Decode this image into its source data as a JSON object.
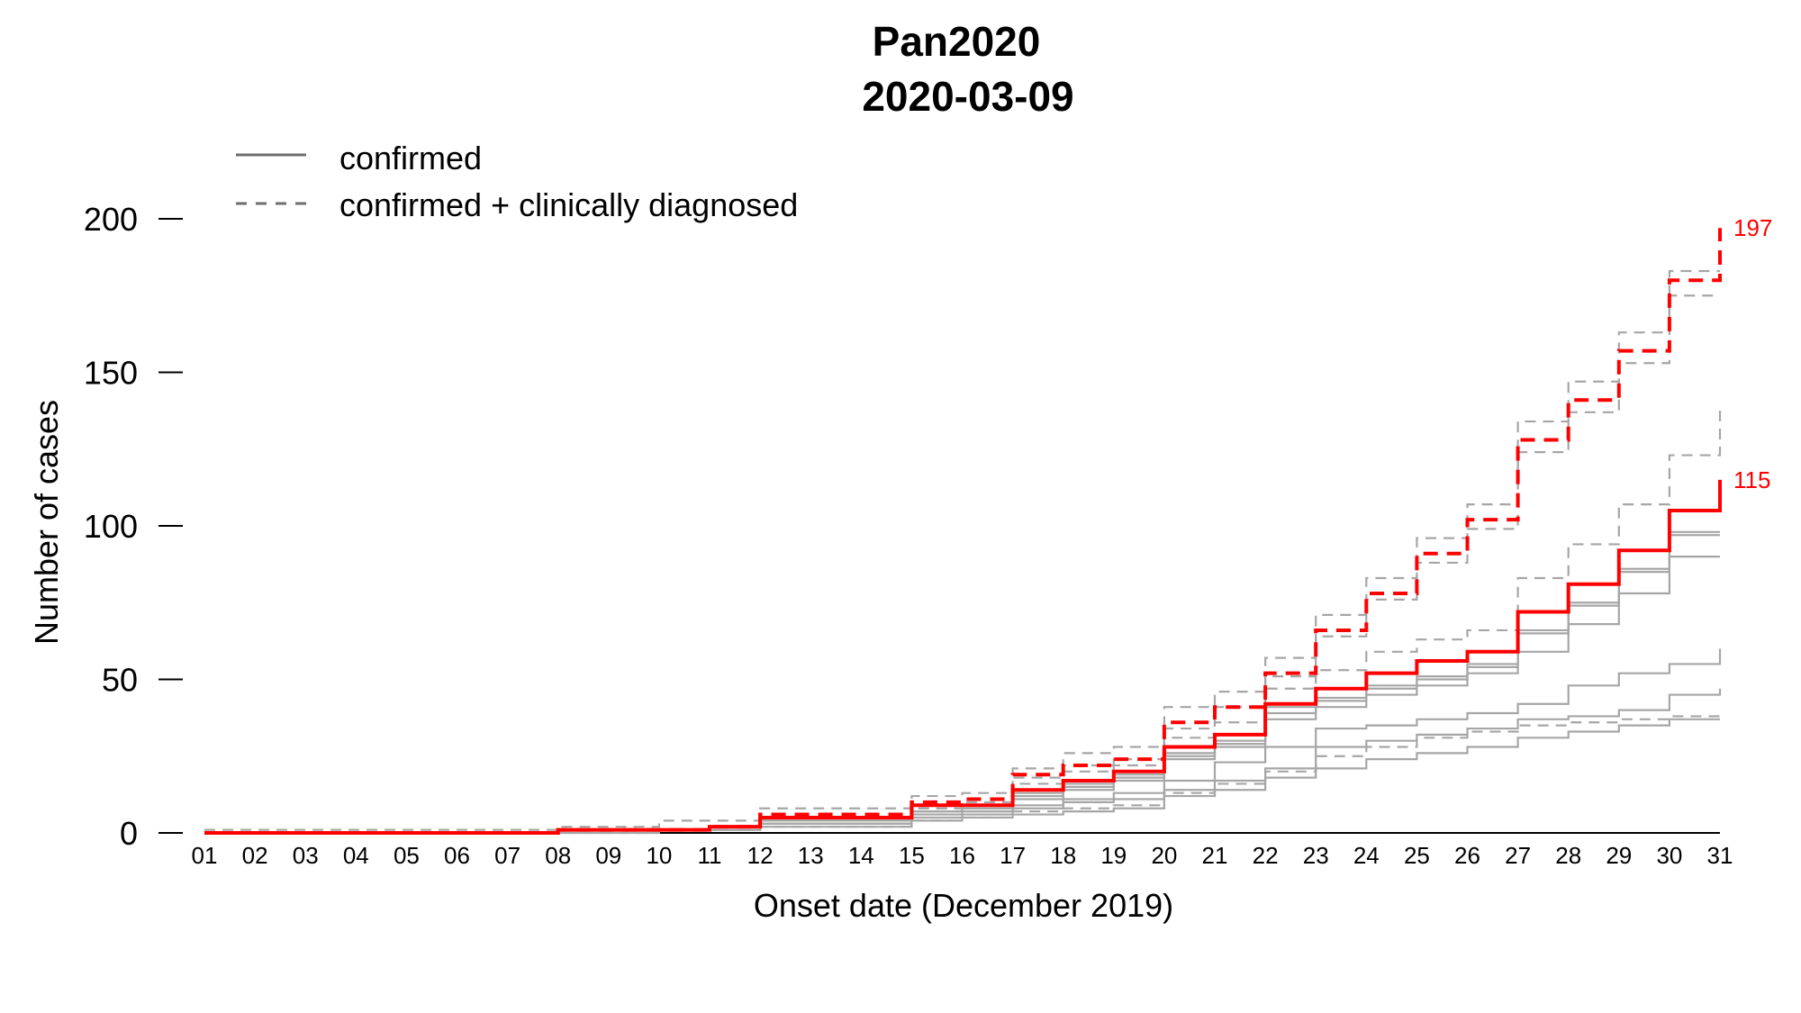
{
  "chart_data": {
    "type": "line",
    "step": true,
    "title": "Pan2020",
    "subtitle": "2020-03-09",
    "xlabel": "Onset date (December 2019)",
    "ylabel": "Number of cases",
    "categories": [
      "01",
      "02",
      "03",
      "04",
      "05",
      "06",
      "07",
      "08",
      "09",
      "10",
      "11",
      "12",
      "13",
      "14",
      "15",
      "16",
      "17",
      "18",
      "19",
      "20",
      "21",
      "22",
      "23",
      "24",
      "25",
      "26",
      "27",
      "28",
      "29",
      "30",
      "31"
    ],
    "xlim": [
      1,
      31
    ],
    "ylim": [
      0,
      200
    ],
    "yticks": [
      0,
      50,
      100,
      150,
      200
    ],
    "grid": false,
    "legend": {
      "position": "top-left",
      "entries": [
        {
          "label": "confirmed",
          "dash": "solid"
        },
        {
          "label": "confirmed + clinically diagnosed",
          "dash": "dashed"
        }
      ]
    },
    "end_labels": [
      {
        "text": "197",
        "value": 197,
        "color": "#ff0000"
      },
      {
        "text": "115",
        "value": 115,
        "color": "#ff0000"
      }
    ],
    "colors": {
      "highlight": "#ff0000",
      "background": "#a6a6a6",
      "axis": "#000000",
      "legend": "#6e6e6e"
    },
    "series": [
      {
        "role": "highlight",
        "dash": "dashed",
        "values": [
          0,
          0,
          0,
          0,
          0,
          0,
          0,
          1,
          1,
          1,
          2,
          6,
          6,
          6,
          10,
          11,
          19,
          22,
          24,
          36,
          41,
          52,
          66,
          78,
          91,
          102,
          128,
          141,
          157,
          180,
          197
        ]
      },
      {
        "role": "highlight",
        "dash": "solid",
        "values": [
          0,
          0,
          0,
          0,
          0,
          0,
          0,
          1,
          1,
          1,
          2,
          5,
          5,
          5,
          9,
          9,
          14,
          17,
          20,
          28,
          32,
          42,
          47,
          52,
          56,
          59,
          72,
          81,
          92,
          105,
          115
        ]
      },
      {
        "role": "background",
        "dash": "dashed",
        "values": [
          1,
          1,
          1,
          1,
          1,
          1,
          1,
          2,
          2,
          4,
          4,
          8,
          8,
          8,
          12,
          13,
          21,
          26,
          28,
          41,
          46,
          57,
          71,
          83,
          96,
          107,
          134,
          147,
          163,
          183,
          183
        ]
      },
      {
        "role": "background",
        "dash": "dashed",
        "values": [
          0,
          0,
          0,
          0,
          0,
          0,
          0,
          1,
          1,
          1,
          2,
          5,
          5,
          5,
          8,
          9,
          16,
          20,
          22,
          31,
          36,
          47,
          64,
          76,
          88,
          99,
          124,
          137,
          153,
          175,
          175
        ]
      },
      {
        "role": "background",
        "dash": "dashed",
        "values": [
          0,
          0,
          0,
          0,
          0,
          0,
          0,
          1,
          1,
          1,
          2,
          5,
          5,
          5,
          8,
          10,
          18,
          22,
          24,
          34,
          41,
          51,
          53,
          59,
          63,
          66,
          83,
          94,
          107,
          123,
          139
        ]
      },
      {
        "role": "background",
        "dash": "solid",
        "values": [
          0,
          0,
          0,
          0,
          0,
          0,
          0,
          1,
          1,
          1,
          2,
          4,
          4,
          4,
          7,
          8,
          13,
          16,
          19,
          26,
          30,
          41,
          44,
          48,
          51,
          55,
          66,
          75,
          86,
          98,
          98
        ]
      },
      {
        "role": "background",
        "dash": "solid",
        "values": [
          0,
          0,
          0,
          0,
          0,
          0,
          0,
          1,
          1,
          1,
          2,
          4,
          4,
          4,
          7,
          8,
          12,
          15,
          18,
          25,
          29,
          39,
          43,
          47,
          50,
          54,
          65,
          74,
          85,
          97,
          97
        ]
      },
      {
        "role": "background",
        "dash": "solid",
        "values": [
          0,
          0,
          0,
          0,
          0,
          0,
          0,
          1,
          1,
          1,
          2,
          4,
          4,
          4,
          7,
          7,
          11,
          14,
          17,
          24,
          28,
          37,
          41,
          45,
          48,
          52,
          59,
          68,
          78,
          90,
          90
        ]
      },
      {
        "role": "background",
        "dash": "solid",
        "values": [
          0,
          0,
          0,
          0,
          0,
          0,
          0,
          1,
          1,
          1,
          2,
          3,
          3,
          3,
          6,
          7,
          9,
          11,
          13,
          17,
          23,
          28,
          34,
          35,
          37,
          39,
          42,
          48,
          52,
          55,
          60
        ]
      },
      {
        "role": "background",
        "dash": "solid",
        "values": [
          0,
          0,
          0,
          0,
          0,
          0,
          0,
          1,
          1,
          1,
          1,
          3,
          3,
          3,
          5,
          6,
          8,
          10,
          11,
          14,
          17,
          21,
          28,
          30,
          32,
          34,
          37,
          38,
          40,
          45,
          47
        ]
      },
      {
        "role": "background",
        "dash": "solid",
        "values": [
          0,
          0,
          0,
          0,
          0,
          0,
          0,
          0,
          0,
          1,
          1,
          2,
          2,
          2,
          4,
          5,
          6,
          7,
          8,
          12,
          14,
          18,
          21,
          24,
          26,
          28,
          31,
          33,
          35,
          37,
          37
        ]
      },
      {
        "role": "background",
        "dash": "dashed",
        "values": [
          0,
          0,
          0,
          0,
          0,
          0,
          0,
          0,
          0,
          1,
          1,
          2,
          2,
          2,
          4,
          5,
          7,
          8,
          9,
          13,
          16,
          20,
          25,
          28,
          31,
          33,
          35,
          36,
          37,
          38,
          38
        ]
      }
    ]
  }
}
